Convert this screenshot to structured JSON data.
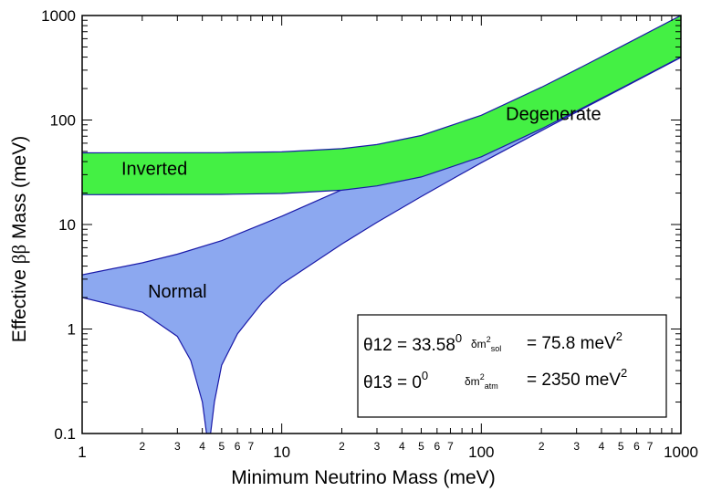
{
  "chart_data": {
    "type": "area",
    "x_scale": "log",
    "y_scale": "log",
    "xlim": [
      1,
      1000
    ],
    "ylim": [
      0.1,
      1000
    ],
    "xlabel": "Minimum Neutrino Mass (meV)",
    "ylabel_parts": [
      "Effective ",
      "ββ",
      " Mass (meV)"
    ],
    "x_ticks_major": [
      1,
      10,
      100,
      1000
    ],
    "x_tick_labels_major": [
      "1",
      "10",
      "100",
      "1000"
    ],
    "x_ticks_minor": [
      2,
      3,
      4,
      5,
      6,
      7,
      20,
      30,
      40,
      50,
      60,
      70,
      200,
      300,
      400,
      500,
      600,
      700
    ],
    "x_tick_labels_minor": [
      "2",
      "3",
      "4",
      "5",
      "6",
      "7",
      "2",
      "3",
      "4",
      "5",
      "6",
      "7",
      "2",
      "3",
      "4",
      "5",
      "6",
      "7"
    ],
    "y_ticks_major": [
      0.1,
      1,
      10,
      100,
      1000
    ],
    "y_tick_labels_major": [
      "0.1",
      "1",
      "10",
      "100",
      "1000"
    ],
    "grid": false,
    "colors": {
      "normal_fill": "#8ca8f0",
      "inverted_fill": "#44f044",
      "band_edge": "#1a1aa8"
    },
    "series": [
      {
        "name": "Normal",
        "upper": {
          "x": [
            1,
            2,
            3,
            5,
            10,
            20,
            30,
            50,
            100,
            200,
            300,
            500,
            1000
          ],
          "y": [
            3.3,
            4.3,
            5.2,
            7.0,
            12.0,
            21.5,
            31.5,
            51.5,
            101,
            200,
            300,
            500,
            1000
          ]
        },
        "lower": {
          "x": [
            1,
            2,
            3,
            3.5,
            4,
            4.2,
            4.4,
            4.6,
            5,
            6,
            8,
            10,
            20,
            30,
            50,
            100,
            200,
            300,
            500,
            1000
          ],
          "y": [
            2.0,
            1.45,
            0.85,
            0.5,
            0.2,
            0.1,
            0.1,
            0.2,
            0.45,
            0.9,
            1.8,
            2.7,
            6.5,
            10.5,
            18.5,
            39,
            79,
            119,
            198,
            397
          ]
        }
      },
      {
        "name": "Inverted",
        "upper": {
          "x": [
            1,
            5,
            10,
            20,
            30,
            50,
            100,
            200,
            300,
            500,
            1000
          ],
          "y": [
            48.5,
            48.7,
            49.6,
            53.2,
            58.2,
            71,
            111,
            206,
            304,
            503,
            1001
          ]
        },
        "lower": {
          "x": [
            1,
            5,
            10,
            20,
            30,
            50,
            100,
            200,
            300,
            500,
            1000
          ],
          "y": [
            19.3,
            19.4,
            19.8,
            21.3,
            23.4,
            28.5,
            44.5,
            82.5,
            122,
            201,
            401
          ]
        }
      }
    ],
    "annotations": [
      {
        "text": "Degenerate",
        "x": 230,
        "y": 100
      },
      {
        "text": "Inverted",
        "x": 2.3,
        "y": 30
      },
      {
        "text": "Normal",
        "x": 3.0,
        "y": 2.0
      }
    ],
    "legend_box": {
      "position": "bottom-right",
      "row1": {
        "theta": "θ12 = 33.58",
        "theta_sup": "0",
        "dm_label": "δm",
        "dm_sup": "2",
        "dm_sub": "sol",
        "value": "= 75.8 meV",
        "value_sup": "2"
      },
      "row2": {
        "theta": "θ13 = 0",
        "theta_sup": "0",
        "dm_label": "δm",
        "dm_sup": "2",
        "dm_sub": "atm",
        "value": "= 2350 meV",
        "value_sup": "2"
      }
    }
  }
}
